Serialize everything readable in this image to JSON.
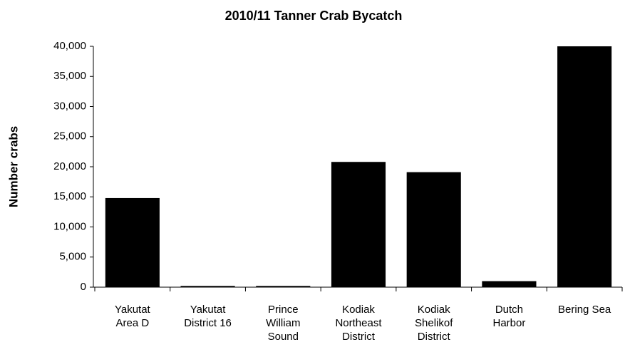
{
  "chart_data": {
    "type": "bar",
    "title": "2010/11 Tanner Crab Bycatch",
    "ylabel": "Number crabs",
    "categories": [
      "Yakutat\nArea D",
      "Yakutat\nDistrict 16",
      "Prince\nWilliam\nSound",
      "Kodiak\nNortheast\nDistrict",
      "Kodiak\nShelikof\nDistrict",
      "Dutch\nHarbor",
      "Bering Sea"
    ],
    "values": [
      14800,
      200,
      200,
      20800,
      19100,
      1000,
      40000
    ],
    "color": "#000000",
    "ylim": [
      0,
      40000
    ],
    "yticks": [
      0,
      {
        "value": 5000,
        "label": "5,000"
      },
      {
        "value": 10000,
        "label": "10,000"
      },
      {
        "value": 15000,
        "label": "15,000"
      },
      {
        "value": 20000,
        "label": "20,000"
      },
      {
        "value": 25000,
        "label": "25,000"
      },
      {
        "value": 30000,
        "label": "30,000"
      },
      {
        "value": 35000,
        "label": "35,000"
      },
      {
        "value": 40000,
        "label": "40,000"
      }
    ],
    "grid": false
  }
}
